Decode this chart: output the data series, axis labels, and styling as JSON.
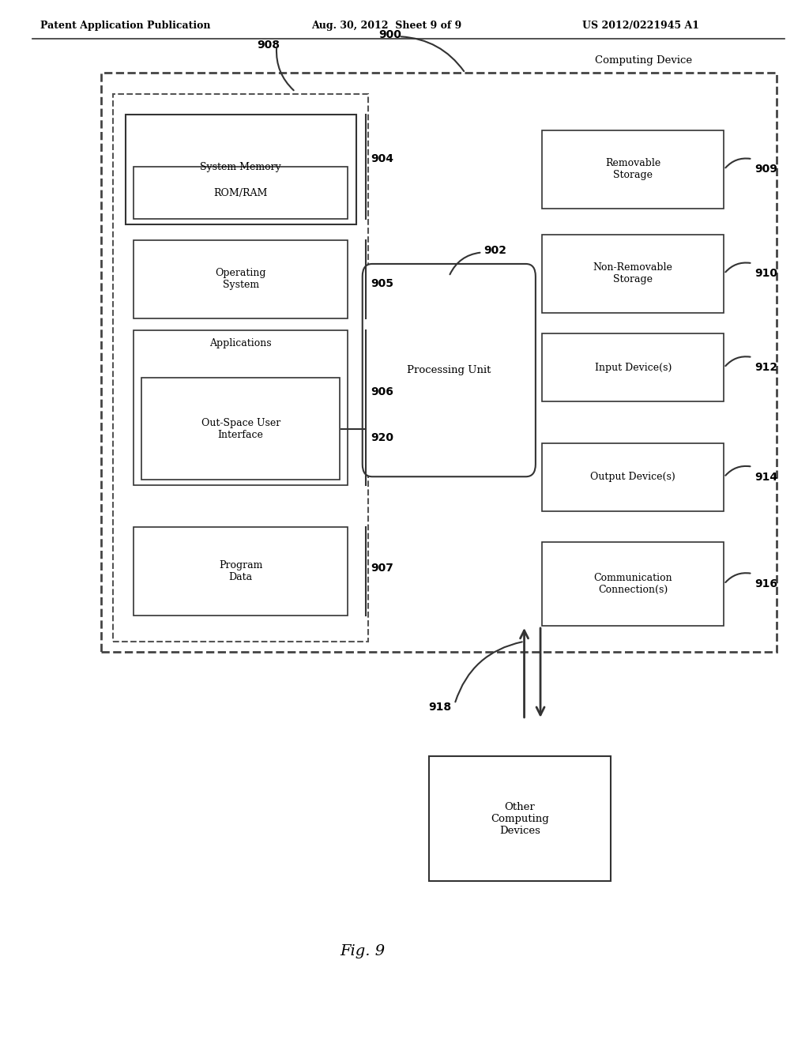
{
  "header_left": "Patent Application Publication",
  "header_mid": "Aug. 30, 2012  Sheet 9 of 9",
  "header_right": "US 2012/0221945 A1",
  "fig_label": "Fig. 9",
  "bg_color": "#ffffff",
  "text_color": "#000000"
}
